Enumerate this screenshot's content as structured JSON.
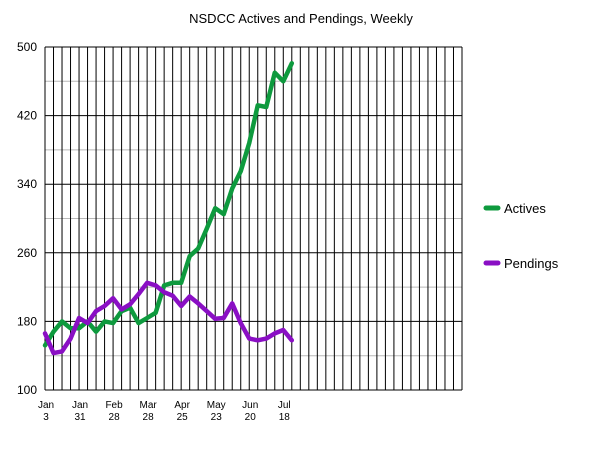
{
  "chart_data": {
    "type": "line",
    "title": "NSDCC Actives and Pendings, Weekly",
    "ylim": [
      100,
      500
    ],
    "y_ticks": [
      "100",
      "180",
      "260",
      "340",
      "420",
      "500"
    ],
    "x_tick_labels": [
      [
        "Jan",
        "3"
      ],
      [
        "Jan",
        "31"
      ],
      [
        "Feb",
        "28"
      ],
      [
        "Mar",
        "28"
      ],
      [
        "Apr",
        "25"
      ],
      [
        "May",
        "23"
      ],
      [
        "Jun",
        "20"
      ],
      [
        "Jul",
        "18"
      ]
    ],
    "x_tick_every": 4,
    "weeks_total": 49,
    "grid": true,
    "legend": "right",
    "series": [
      {
        "name": "Actives",
        "color": "#0e9a3e",
        "values": [
          152,
          168,
          180,
          172,
          172,
          180,
          168,
          180,
          178,
          192,
          196,
          178,
          184,
          190,
          222,
          225,
          225,
          256,
          265,
          288,
          312,
          305,
          335,
          355,
          388,
          432,
          430,
          470,
          460,
          481
        ]
      },
      {
        "name": "Pendings",
        "color": "#8a0fc4",
        "values": [
          166,
          143,
          145,
          160,
          184,
          178,
          192,
          198,
          207,
          194,
          200,
          212,
          225,
          222,
          214,
          210,
          198,
          209,
          201,
          192,
          183,
          184,
          201,
          178,
          160,
          158,
          160,
          166,
          170,
          158
        ]
      }
    ]
  }
}
